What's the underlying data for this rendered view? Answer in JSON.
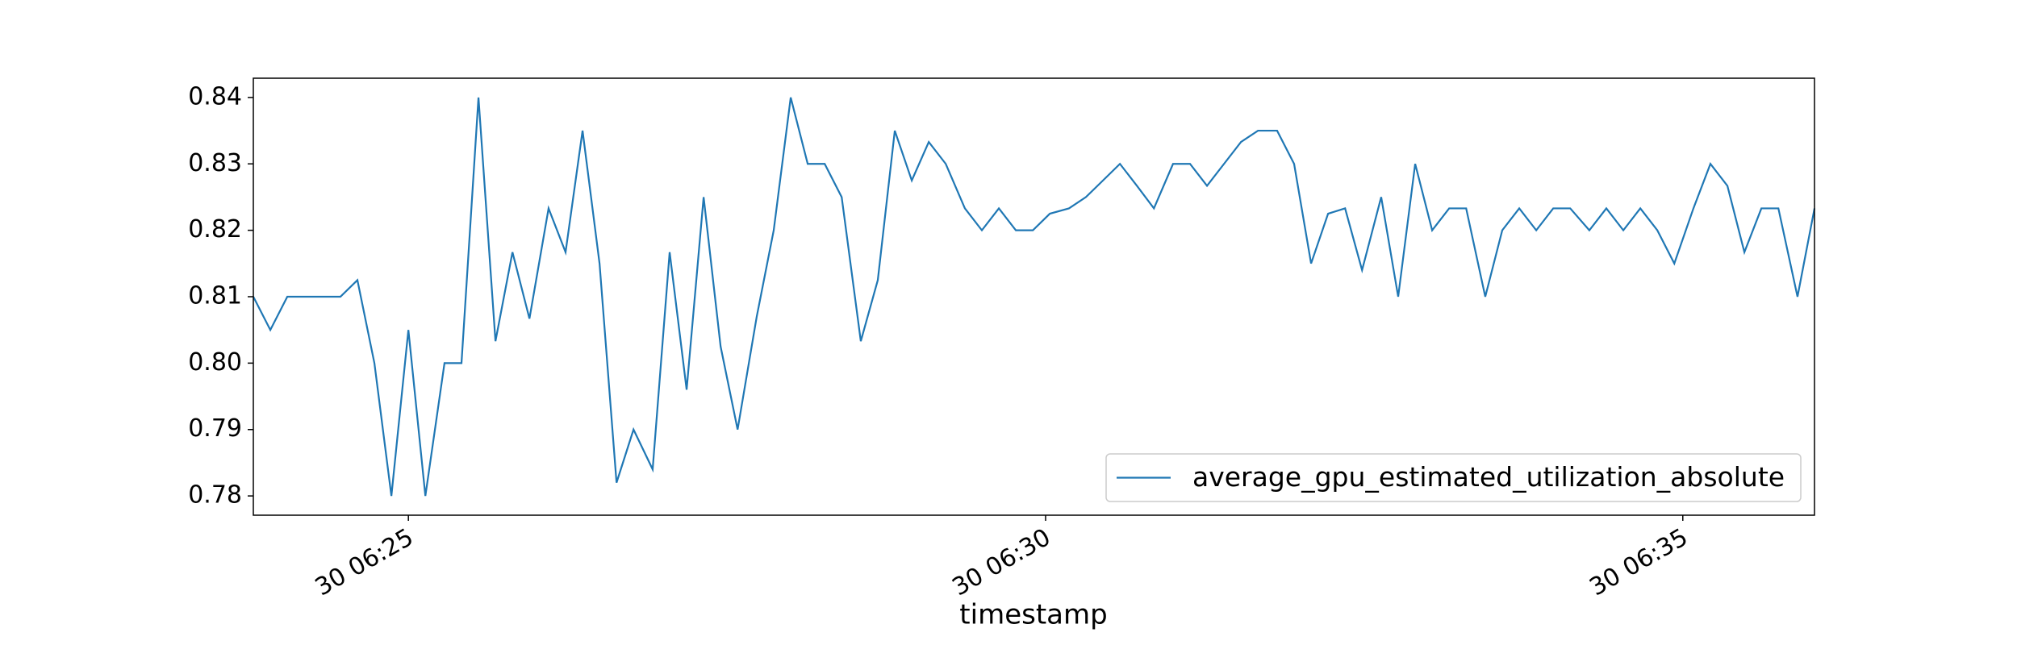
{
  "chart_data": {
    "type": "line",
    "xlabel": "timestamp",
    "x": [
      "30 06:23:47",
      "30 06:23:55",
      "30 06:24:03",
      "30 06:24:11",
      "30 06:24:19",
      "30 06:24:28",
      "30 06:24:36",
      "30 06:24:44",
      "30 06:24:52",
      "30 06:25:00",
      "30 06:25:08",
      "30 06:25:17",
      "30 06:25:25",
      "30 06:25:33",
      "30 06:25:41",
      "30 06:25:49",
      "30 06:25:57",
      "30 06:26:06",
      "30 06:26:14",
      "30 06:26:22",
      "30 06:26:30",
      "30 06:26:38",
      "30 06:26:46",
      "30 06:26:55",
      "30 06:27:03",
      "30 06:27:11",
      "30 06:27:19",
      "30 06:27:27",
      "30 06:27:35",
      "30 06:27:44",
      "30 06:27:52",
      "30 06:28:00",
      "30 06:28:08",
      "30 06:28:16",
      "30 06:28:24",
      "30 06:28:33",
      "30 06:28:41",
      "30 06:28:49",
      "30 06:28:57",
      "30 06:29:05",
      "30 06:29:13",
      "30 06:29:22",
      "30 06:29:30",
      "30 06:29:38",
      "30 06:29:46",
      "30 06:29:54",
      "30 06:30:02",
      "30 06:30:11",
      "30 06:30:19",
      "30 06:30:27",
      "30 06:30:35",
      "30 06:30:43",
      "30 06:30:51",
      "30 06:31:00",
      "30 06:31:08",
      "30 06:31:16",
      "30 06:31:24",
      "30 06:31:32",
      "30 06:31:40",
      "30 06:31:49",
      "30 06:31:57",
      "30 06:32:05",
      "30 06:32:13",
      "30 06:32:21",
      "30 06:32:29",
      "30 06:32:38",
      "30 06:32:46",
      "30 06:32:54",
      "30 06:33:02",
      "30 06:33:10",
      "30 06:33:18",
      "30 06:33:27",
      "30 06:33:35",
      "30 06:33:43",
      "30 06:33:51",
      "30 06:33:59",
      "30 06:34:07",
      "30 06:34:16",
      "30 06:34:24",
      "30 06:34:32",
      "30 06:34:40",
      "30 06:34:48",
      "30 06:34:56",
      "30 06:35:05",
      "30 06:35:13",
      "30 06:35:21",
      "30 06:35:29",
      "30 06:35:37",
      "30 06:35:45",
      "30 06:35:54",
      "30 06:36:02"
    ],
    "series": [
      {
        "name": "average_gpu_estimated_utilization_absolute",
        "color": "#1f77b4",
        "values": [
          0.81,
          0.805,
          0.81,
          0.81,
          0.81,
          0.81,
          0.8125,
          0.8,
          0.78,
          0.805,
          0.78,
          0.8,
          0.8,
          0.84,
          0.8033,
          0.8167,
          0.8067,
          0.8233,
          0.8167,
          0.835,
          0.815,
          0.782,
          0.79,
          0.784,
          0.8167,
          0.796,
          0.825,
          0.8025,
          0.79,
          0.807,
          0.82,
          0.84,
          0.83,
          0.83,
          0.825,
          0.8033,
          0.8125,
          0.835,
          0.8275,
          0.8333,
          0.83,
          0.8233,
          0.82,
          0.8233,
          0.82,
          0.82,
          0.8225,
          0.8233,
          0.825,
          0.8275,
          0.83,
          0.8267,
          0.8233,
          0.83,
          0.83,
          0.8267,
          0.83,
          0.8333,
          0.835,
          0.835,
          0.83,
          0.815,
          0.8225,
          0.8233,
          0.814,
          0.825,
          0.81,
          0.83,
          0.82,
          0.8233,
          0.8233,
          0.81,
          0.82,
          0.8233,
          0.82,
          0.8233,
          0.8233,
          0.82,
          0.8233,
          0.82,
          0.8233,
          0.82,
          0.815,
          0.8233,
          0.83,
          0.8267,
          0.8167,
          0.8233,
          0.8233,
          0.81,
          0.8233
        ]
      }
    ],
    "xlim": [
      "30 06:23:47",
      "30 06:36:02"
    ],
    "xticks": [
      {
        "value": "30 06:25:00",
        "label": "30 06:25"
      },
      {
        "value": "30 06:30:00",
        "label": "30 06:30"
      },
      {
        "value": "30 06:35:00",
        "label": "30 06:35"
      }
    ],
    "ylim": [
      0.7771,
      0.8429
    ],
    "yticks": [
      0.78,
      0.79,
      {
        "value": 0.8,
        "label": "0.80"
      },
      0.81,
      0.82,
      0.83,
      0.84
    ],
    "legend": "lower right"
  }
}
